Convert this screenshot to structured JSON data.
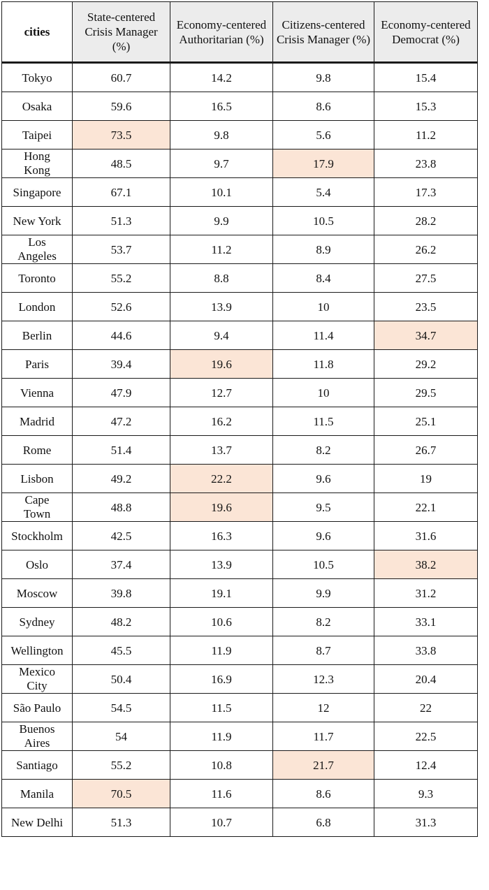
{
  "table": {
    "headers": [
      "cities",
      "State-centered Crisis Manager (%)",
      "Economy-centered Authoritarian (%)",
      "Citizens-centered Crisis Manager (%)",
      "Economy-centered Democrat (%)"
    ],
    "highlight_color": "#fbe5d6",
    "rows": [
      {
        "city": "Tokyo",
        "values": [
          "60.7",
          "14.2",
          "9.8",
          "15.4"
        ],
        "highlight": []
      },
      {
        "city": "Osaka",
        "values": [
          "59.6",
          "16.5",
          "8.6",
          "15.3"
        ],
        "highlight": []
      },
      {
        "city": "Taipei",
        "values": [
          "73.5",
          "9.8",
          "5.6",
          "11.2"
        ],
        "highlight": [
          0
        ]
      },
      {
        "city": "Hong Kong",
        "values": [
          "48.5",
          "9.7",
          "17.9",
          "23.8"
        ],
        "highlight": [
          2
        ]
      },
      {
        "city": "Singapore",
        "values": [
          "67.1",
          "10.1",
          "5.4",
          "17.3"
        ],
        "highlight": []
      },
      {
        "city": "New York",
        "values": [
          "51.3",
          "9.9",
          "10.5",
          "28.2"
        ],
        "highlight": []
      },
      {
        "city": "Los Angeles",
        "values": [
          "53.7",
          "11.2",
          "8.9",
          "26.2"
        ],
        "highlight": []
      },
      {
        "city": "Toronto",
        "values": [
          "55.2",
          "8.8",
          "8.4",
          "27.5"
        ],
        "highlight": []
      },
      {
        "city": "London",
        "values": [
          "52.6",
          "13.9",
          "10",
          "23.5"
        ],
        "highlight": []
      },
      {
        "city": "Berlin",
        "values": [
          "44.6",
          "9.4",
          "11.4",
          "34.7"
        ],
        "highlight": [
          3
        ]
      },
      {
        "city": "Paris",
        "values": [
          "39.4",
          "19.6",
          "11.8",
          "29.2"
        ],
        "highlight": [
          1
        ]
      },
      {
        "city": "Vienna",
        "values": [
          "47.9",
          "12.7",
          "10",
          "29.5"
        ],
        "highlight": []
      },
      {
        "city": "Madrid",
        "values": [
          "47.2",
          "16.2",
          "11.5",
          "25.1"
        ],
        "highlight": []
      },
      {
        "city": "Rome",
        "values": [
          "51.4",
          "13.7",
          "8.2",
          "26.7"
        ],
        "highlight": []
      },
      {
        "city": "Lisbon",
        "values": [
          "49.2",
          "22.2",
          "9.6",
          "19"
        ],
        "highlight": [
          1
        ]
      },
      {
        "city": "Cape Town",
        "values": [
          "48.8",
          "19.6",
          "9.5",
          "22.1"
        ],
        "highlight": [
          1
        ]
      },
      {
        "city": "Stockholm",
        "values": [
          "42.5",
          "16.3",
          "9.6",
          "31.6"
        ],
        "highlight": []
      },
      {
        "city": "Oslo",
        "values": [
          "37.4",
          "13.9",
          "10.5",
          "38.2"
        ],
        "highlight": [
          3
        ]
      },
      {
        "city": "Moscow",
        "values": [
          "39.8",
          "19.1",
          "9.9",
          "31.2"
        ],
        "highlight": []
      },
      {
        "city": "Sydney",
        "values": [
          "48.2",
          "10.6",
          "8.2",
          "33.1"
        ],
        "highlight": []
      },
      {
        "city": "Wellington",
        "values": [
          "45.5",
          "11.9",
          "8.7",
          "33.8"
        ],
        "highlight": []
      },
      {
        "city": "Mexico City",
        "values": [
          "50.4",
          "16.9",
          "12.3",
          "20.4"
        ],
        "highlight": []
      },
      {
        "city": "São Paulo",
        "values": [
          "54.5",
          "11.5",
          "12",
          "22"
        ],
        "highlight": []
      },
      {
        "city": "Buenos Aires",
        "values": [
          "54",
          "11.9",
          "11.7",
          "22.5"
        ],
        "highlight": []
      },
      {
        "city": "Santiago",
        "values": [
          "55.2",
          "10.8",
          "21.7",
          "12.4"
        ],
        "highlight": [
          2
        ]
      },
      {
        "city": "Manila",
        "values": [
          "70.5",
          "11.6",
          "8.6",
          "9.3"
        ],
        "highlight": [
          0
        ]
      },
      {
        "city": "New Delhi",
        "values": [
          "51.3",
          "10.7",
          "6.8",
          "31.3"
        ],
        "highlight": []
      }
    ]
  }
}
